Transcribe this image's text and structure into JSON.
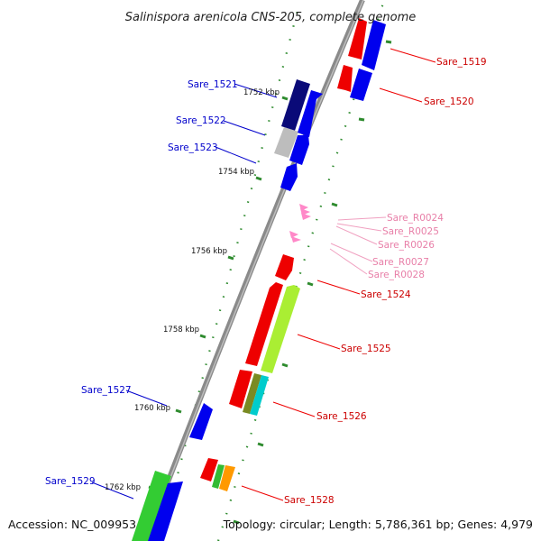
{
  "title": "Salinispora arenicola CNS-205, complete genome",
  "footer": {
    "accession": "Accession: NC_009953",
    "topology": "Topology: circular; Length: 5,786,361 bp; Genes: 4,979"
  },
  "colors": {
    "backbone": "#8a8a8a",
    "tick": "#2e8b2e",
    "label_blue": "#0000cc",
    "label_red": "#cc0000",
    "label_pink": "#e87fa8"
  },
  "kbp_labels": [
    "1752 kbp",
    "1754 kbp",
    "1756 kbp",
    "1758 kbp",
    "1760 kbp",
    "1762 kbp"
  ],
  "genes": [
    {
      "label": "Sare_1519",
      "color": "#cc0000"
    },
    {
      "label": "Sare_1520",
      "color": "#cc0000"
    },
    {
      "label": "Sare_1521",
      "color": "#0000cc"
    },
    {
      "label": "Sare_1522",
      "color": "#0000cc"
    },
    {
      "label": "Sare_1523",
      "color": "#0000cc"
    },
    {
      "label": "Sare_R0024",
      "color": "#e87fa8"
    },
    {
      "label": "Sare_R0025",
      "color": "#e87fa8"
    },
    {
      "label": "Sare_R0026",
      "color": "#e87fa8"
    },
    {
      "label": "Sare_R0027",
      "color": "#e87fa8"
    },
    {
      "label": "Sare_R0028",
      "color": "#e87fa8"
    },
    {
      "label": "Sare_1524",
      "color": "#cc0000"
    },
    {
      "label": "Sare_1525",
      "color": "#cc0000"
    },
    {
      "label": "Sare_1526",
      "color": "#cc0000"
    },
    {
      "label": "Sare_1527",
      "color": "#0000cc"
    },
    {
      "label": "Sare_1528",
      "color": "#cc0000"
    },
    {
      "label": "Sare_1529",
      "color": "#0000cc"
    }
  ]
}
